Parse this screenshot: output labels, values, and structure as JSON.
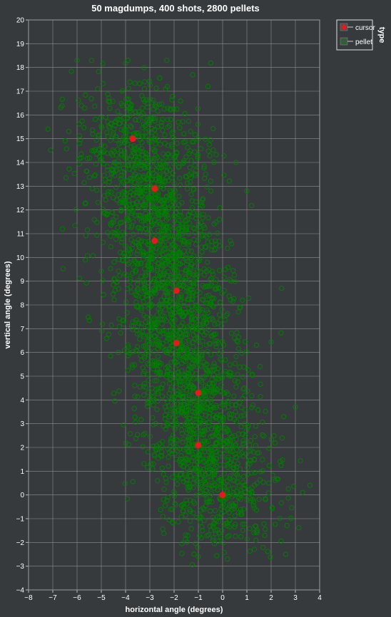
{
  "chart_data": {
    "type": "scatter",
    "title": "50 magdumps, 400 shots, 2800 pellets",
    "xlabel": "horizontal angle (degrees)",
    "ylabel": "vertical angle (degrees)",
    "xlim": [
      -8,
      4
    ],
    "ylim": [
      -4,
      20
    ],
    "x_ticks": [
      -8,
      -7,
      -6,
      -5,
      -4,
      -3,
      -2,
      -1,
      0,
      1,
      2,
      3,
      4
    ],
    "y_ticks": [
      -4,
      -3,
      -2,
      -1,
      0,
      1,
      2,
      3,
      4,
      5,
      6,
      7,
      8,
      9,
      10,
      11,
      12,
      13,
      14,
      15,
      16,
      17,
      18,
      19,
      20
    ],
    "grid": true,
    "legend": {
      "title": "type",
      "position": "top-right",
      "entries": [
        {
          "label": "cursor",
          "color": "#e41a1c"
        },
        {
          "label": "pellet",
          "color": "#008000"
        }
      ]
    },
    "series": [
      {
        "name": "cursor",
        "color": "#e41a1c",
        "points": [
          [
            0.0,
            0.0
          ],
          [
            -1.0,
            2.1
          ],
          [
            -1.0,
            4.3
          ],
          [
            -1.9,
            6.4
          ],
          [
            -1.9,
            8.6
          ],
          [
            -2.8,
            10.7
          ],
          [
            -2.8,
            12.9
          ],
          [
            -3.7,
            15.0
          ]
        ]
      },
      {
        "name": "pellet",
        "color": "#008000",
        "shown_count": 2800,
        "cluster_centers": [
          [
            0.0,
            0.0
          ],
          [
            -1.0,
            2.1
          ],
          [
            -1.0,
            4.3
          ],
          [
            -1.9,
            6.4
          ],
          [
            -1.9,
            8.6
          ],
          [
            -2.8,
            10.7
          ],
          [
            -2.8,
            12.9
          ],
          [
            -3.7,
            15.0
          ]
        ],
        "spread_x": 1.55,
        "spread_y": 1.3,
        "outliers": [
          [
            -7.2,
            15.4
          ],
          [
            -6.0,
            18.3
          ],
          [
            -5.4,
            18.3
          ],
          [
            -3.9,
            18.3
          ],
          [
            -2.3,
            18.3
          ],
          [
            -0.6,
            17.2
          ],
          [
            1.0,
            12.8
          ],
          [
            3.3,
            0.1
          ],
          [
            3.6,
            0.4
          ],
          [
            2.6,
            -2.5
          ],
          [
            -6.6,
            11.2
          ],
          [
            -1.0,
            -2.6
          ],
          [
            0.2,
            -2.7
          ],
          [
            3.0,
            3.7
          ],
          [
            -4.3,
            6.0
          ]
        ]
      }
    ]
  }
}
